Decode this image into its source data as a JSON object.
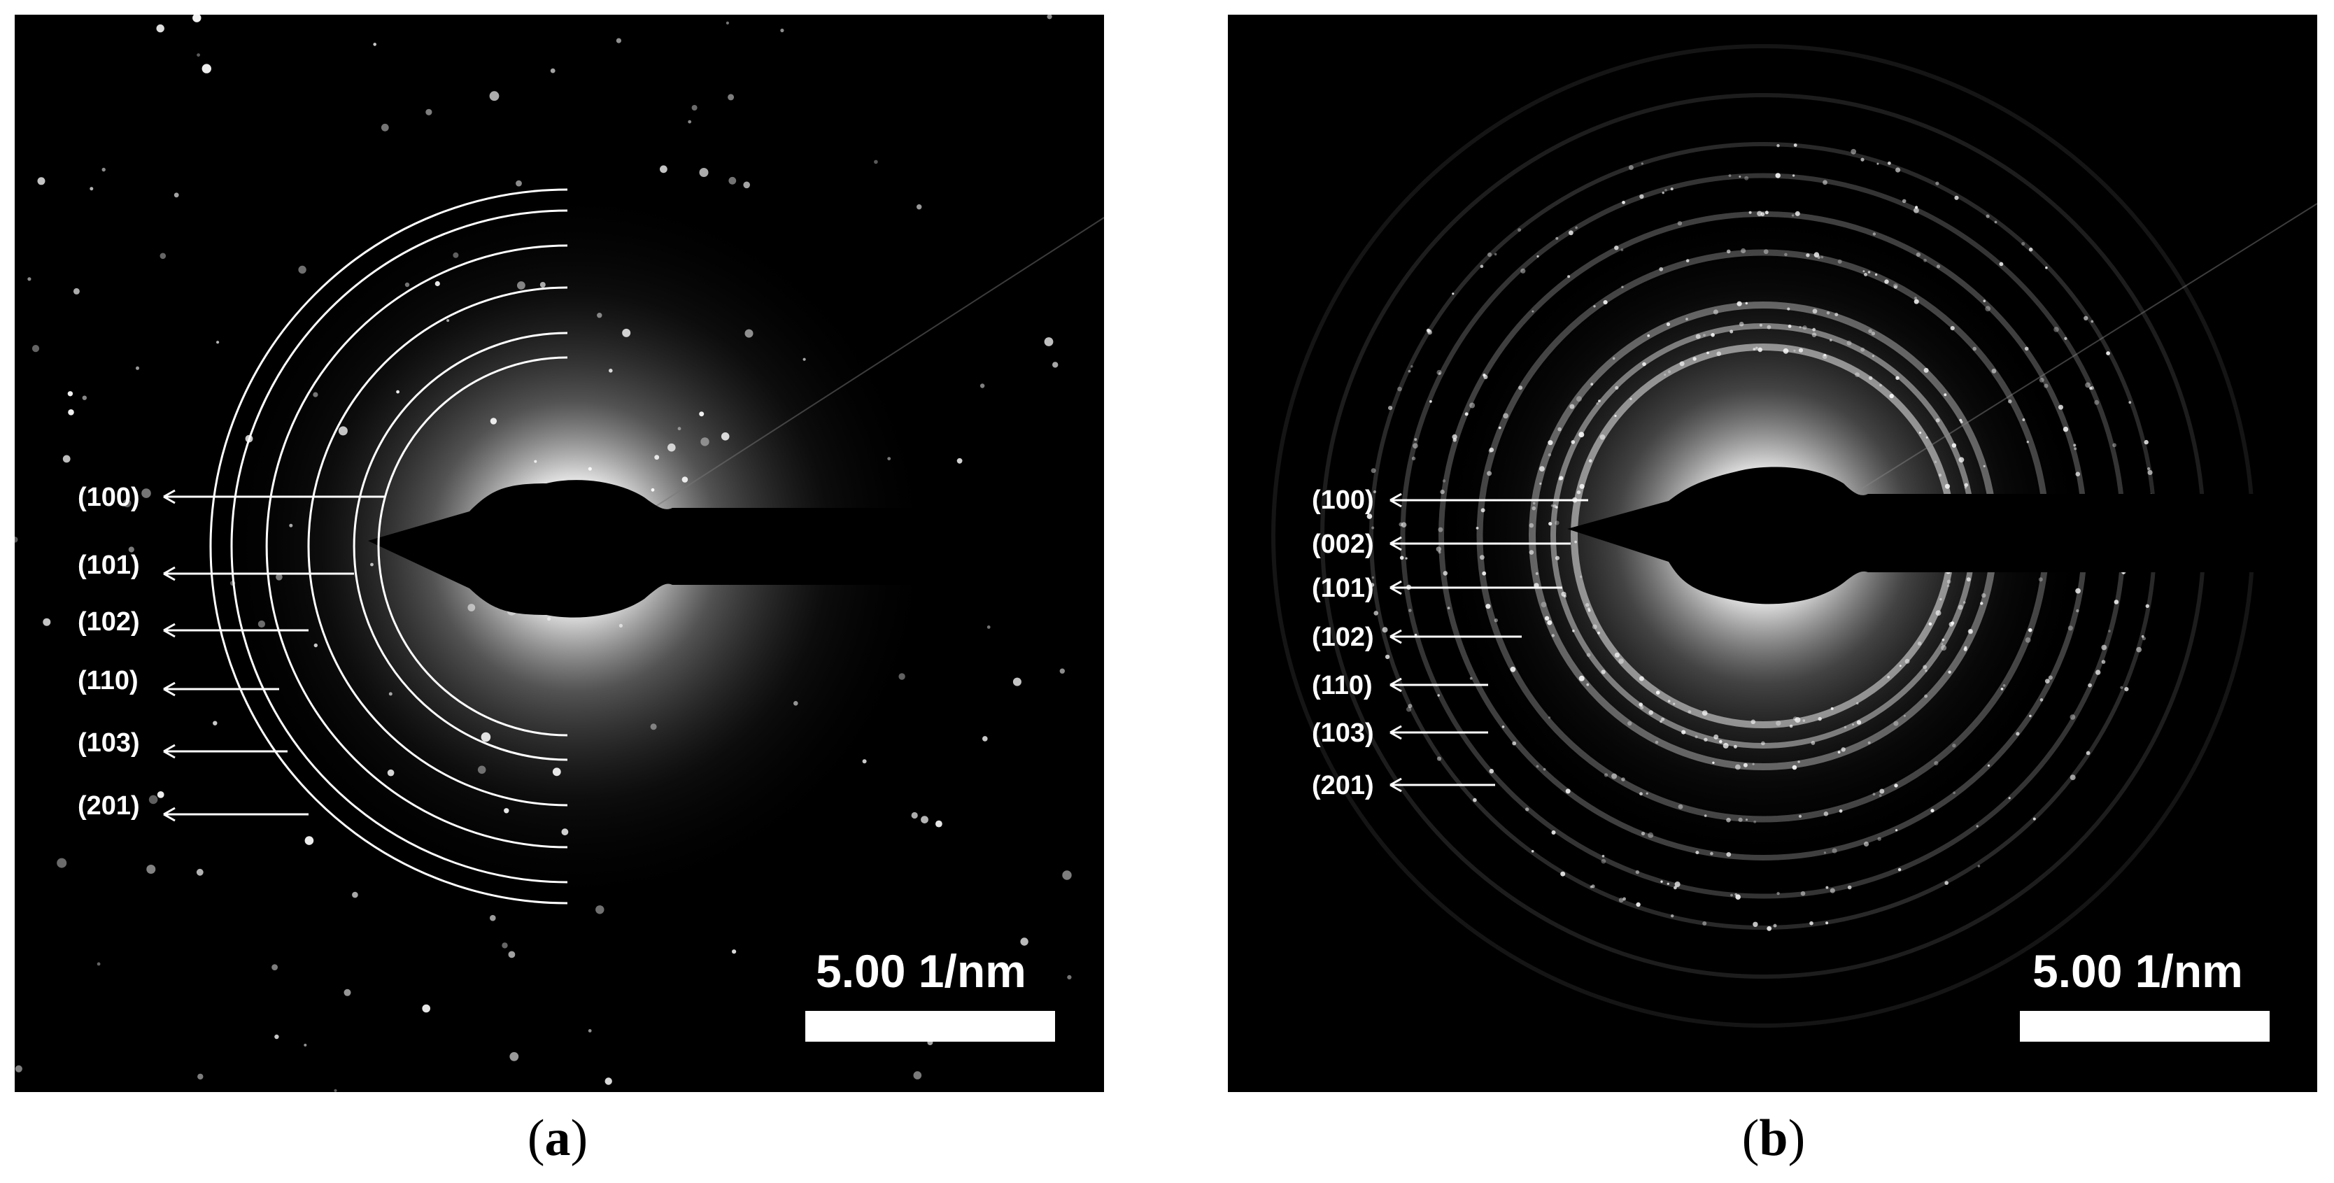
{
  "panels": [
    {
      "id": "a",
      "caption_open": "(",
      "caption_letter": "a",
      "caption_close": ")",
      "scale_bar_label": "5.00 1/nm",
      "indices": [
        "(100)",
        "(101)",
        "(102)",
        "(110)",
        "(103)",
        "(201)"
      ]
    },
    {
      "id": "b",
      "caption_open": "(",
      "caption_letter": "b",
      "caption_close": ")",
      "scale_bar_label": "5.00 1/nm",
      "indices": [
        "(100)",
        "(002)",
        "(101)",
        "(102)",
        "(110)",
        "(103)",
        "(201)"
      ]
    }
  ],
  "colors": {
    "background": "#000000",
    "annotation": "#ffffff",
    "page": "#ffffff"
  }
}
